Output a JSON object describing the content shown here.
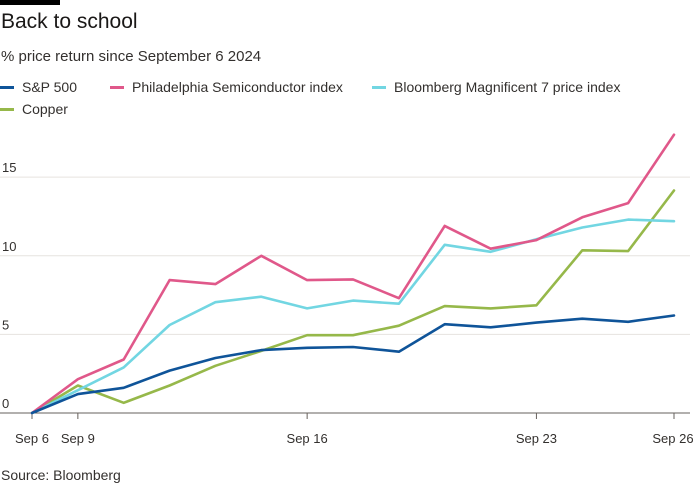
{
  "chart_data": {
    "type": "line",
    "title": "Back to school",
    "subtitle": "% price return since September 6 2024",
    "source": "Source: Bloomberg",
    "x": [
      "Sep 6",
      "Sep 9",
      "Sep 10",
      "Sep 11",
      "Sep 12",
      "Sep 13",
      "Sep 16",
      "Sep 17",
      "Sep 18",
      "Sep 19",
      "Sep 20",
      "Sep 23",
      "Sep 24",
      "Sep 25",
      "Sep 26"
    ],
    "x_ticks": [
      {
        "index": 0,
        "label": "Sep 6"
      },
      {
        "index": 1,
        "label": "Sep 9"
      },
      {
        "index": 6,
        "label": "Sep 16"
      },
      {
        "index": 11,
        "label": "Sep 23"
      },
      {
        "index": 14,
        "label": "Sep 26"
      }
    ],
    "ylim": [
      0,
      18
    ],
    "yticks": [
      0,
      5,
      10,
      15
    ],
    "grid": "horizontal",
    "legend_position": "top",
    "series": [
      {
        "name": "S&P 500",
        "color": "#0f5499",
        "values": [
          0,
          1.2,
          1.6,
          2.7,
          3.5,
          4.0,
          4.15,
          4.2,
          3.9,
          5.65,
          5.45,
          5.75,
          6.0,
          5.8,
          6.2
        ]
      },
      {
        "name": "Philadelphia Semiconductor index",
        "color": "#e0588a",
        "values": [
          0,
          2.15,
          3.4,
          8.45,
          8.2,
          10.0,
          8.45,
          8.5,
          7.3,
          11.9,
          10.45,
          11.0,
          12.45,
          13.35,
          17.7
        ]
      },
      {
        "name": "Bloomberg Magnificent 7 price index",
        "color": "#72d6e2",
        "values": [
          0,
          1.45,
          2.9,
          5.6,
          7.05,
          7.4,
          6.65,
          7.15,
          6.95,
          10.7,
          10.25,
          11.05,
          11.8,
          12.3,
          12.2
        ]
      },
      {
        "name": "Copper",
        "color": "#96b84a",
        "values": [
          0,
          1.75,
          0.65,
          1.75,
          3.0,
          3.95,
          4.95,
          4.95,
          5.55,
          6.8,
          6.65,
          6.85,
          10.35,
          10.3,
          14.15
        ]
      }
    ]
  }
}
